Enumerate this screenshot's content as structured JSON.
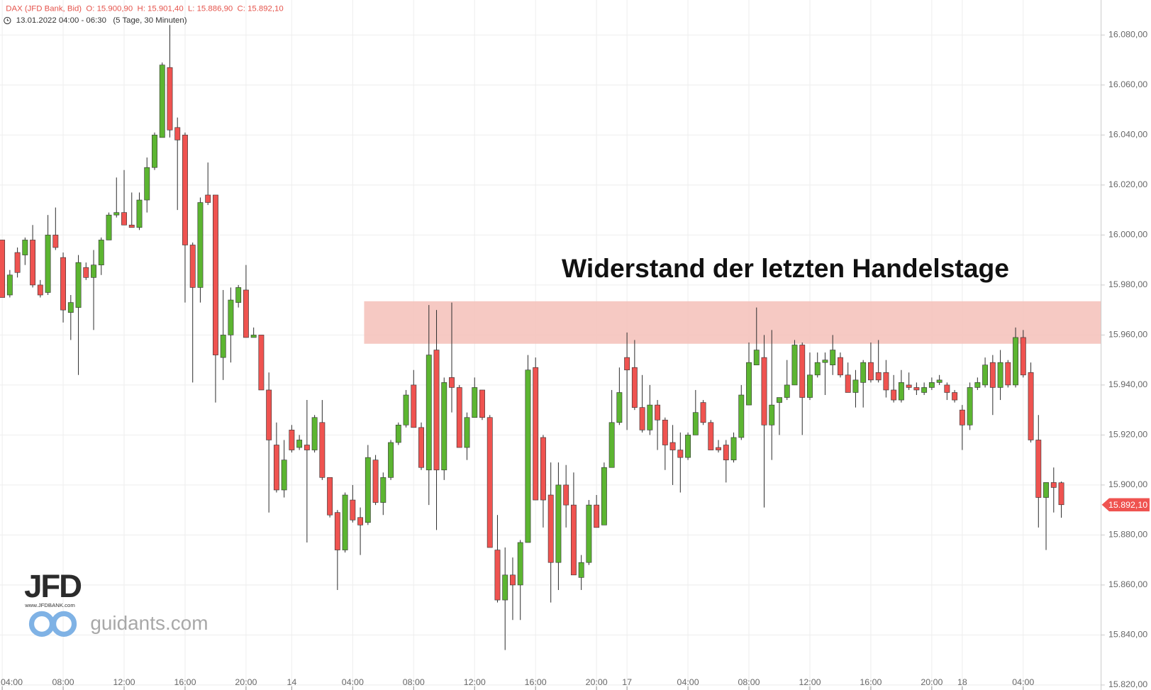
{
  "chart_data": {
    "type": "candlestick",
    "header": "DAX (JFD Bank, Bid)  O: 15.900,90  H: 15.901,40  L: 15.886,90  C: 15.892,10",
    "subheader": "13.01.2022 04:00 - 06:30   (5 Tage, 30 Minuten)",
    "categories": [
      "04:00",
      null,
      null,
      null,
      null,
      null,
      null,
      null,
      "08:00",
      null,
      null,
      null,
      null,
      null,
      null,
      null,
      "12:00",
      null,
      null,
      null,
      null,
      null,
      null,
      null,
      "16:00",
      null,
      null,
      null,
      null,
      null,
      null,
      null,
      "20:00",
      null,
      null,
      null,
      null,
      null,
      "14",
      null,
      null,
      null,
      null,
      null,
      null,
      null,
      "04:00",
      null,
      null,
      null,
      null,
      null,
      null,
      null,
      "08:00",
      null,
      null,
      null,
      null,
      null,
      null,
      null,
      "12:00",
      null,
      null,
      null,
      null,
      null,
      null,
      null,
      "16:00",
      null,
      null,
      null,
      null,
      null,
      null,
      null,
      "20:00",
      null,
      null,
      null,
      "17",
      null,
      null,
      null,
      null,
      null,
      null,
      null,
      "04:00",
      null,
      null,
      null,
      null,
      null,
      null,
      null,
      "08:00",
      null,
      null,
      null,
      null,
      null,
      null,
      null,
      "12:00",
      null,
      null,
      null,
      null,
      null,
      null,
      null,
      "16:00",
      null,
      null,
      null,
      null,
      null,
      null,
      null,
      "20:00",
      null,
      null,
      null,
      "18",
      null,
      null,
      null,
      null,
      null,
      null,
      null,
      "04:00",
      null,
      null,
      null,
      null,
      null
    ],
    "open": [
      15998,
      15976,
      15993,
      15992,
      15998,
      15980,
      15977,
      16000,
      15991,
      15969,
      15971,
      15987,
      15983,
      15988,
      15998,
      16008,
      16009,
      16004,
      16003,
      16014,
      16027,
      16039,
      16067,
      16043,
      16040,
      15996,
      15979,
      16016,
      16016,
      15951,
      15960,
      15973,
      15978,
      15959,
      15960,
      15938,
      15916,
      15898,
      15922,
      15915,
      15916,
      15914,
      15925,
      15903,
      15889,
      15874,
      15894,
      15887,
      15885,
      15910,
      15893,
      15903,
      15917,
      15924,
      15940,
      15923,
      15906,
      15954,
      15906,
      15943,
      15939,
      15915,
      15927,
      15938,
      15927,
      15874,
      15854,
      15864,
      15860,
      15877,
      15947,
      15919,
      15896,
      15869,
      15900,
      15892,
      15863,
      15869,
      15892,
      15884,
      15907,
      15925,
      15951,
      15947,
      15931,
      15922,
      15932,
      15926,
      15917,
      15914,
      15911,
      15920,
      15933,
      15925,
      15915,
      15916,
      15910,
      15919,
      15932,
      15948,
      15951,
      15924,
      15933,
      15935,
      15940,
      15956,
      15935,
      15944,
      15949,
      15948,
      15951,
      15944,
      15937,
      15941,
      15949,
      15945,
      15945,
      15938,
      15934,
      15940,
      15939,
      15937,
      15939,
      15941,
      15940,
      15937,
      15930,
      15924,
      15939,
      15940,
      15949,
      15939,
      15949,
      15940,
      15959,
      15945,
      15918,
      15895,
      15901,
      15900.9
    ],
    "high": [
      15998,
      15986,
      15995,
      15999,
      16004,
      15982,
      16008,
      16011,
      15993,
      15976,
      15992,
      15989,
      15994,
      15999,
      16009,
      16023,
      16026,
      16017,
      16017,
      16031,
      16041,
      16069,
      16084,
      16047,
      16041,
      15997,
      16015,
      16029,
      16016,
      15978,
      15979,
      15980,
      15988,
      15963,
      15960,
      15945,
      15925,
      15918,
      15924,
      15920,
      15934,
      15928,
      15934,
      15903,
      15890,
      15897,
      15900,
      15891,
      15916,
      15912,
      15905,
      15918,
      15925,
      15938,
      15946,
      15925,
      15972,
      15970,
      15943,
      15973,
      15940,
      15929,
      15943,
      15938,
      15928,
      15888,
      15875,
      15871,
      15878,
      15952,
      15951,
      15920,
      15909,
      15909,
      15908,
      15905,
      15872,
      15894,
      15896,
      15909,
      15938,
      15947,
      15961,
      15958,
      15944,
      15940,
      15934,
      15927,
      15924,
      15921,
      15921,
      15938,
      15934,
      15926,
      15918,
      15918,
      15921,
      15940,
      15957,
      15971,
      15960,
      15962,
      15935,
      15950,
      15958,
      15957,
      15953,
      15953,
      15953,
      15960,
      15953,
      15949,
      15946,
      15950,
      15957,
      15958,
      15950,
      15944,
      15946,
      15945,
      15941,
      15941,
      15943,
      15944,
      15941,
      15938,
      15932,
      15941,
      15943,
      15951,
      15952,
      15954,
      15950,
      15963,
      15962,
      15949,
      15928,
      15901,
      15907,
      15901.4
    ],
    "low": [
      15975,
      15975,
      15983,
      15988,
      15979,
      15975,
      15976,
      15994,
      15965,
      15958,
      15944,
      15982,
      15962,
      15984,
      15998,
      16007,
      16004,
      16003,
      16002,
      16009,
      16026,
      16039,
      16039,
      16010,
      15973,
      15941,
      15973,
      16012,
      15933,
      15942,
      15949,
      15971,
      15959,
      15959,
      15938,
      15889,
      15897,
      15895,
      15913,
      15914,
      15877,
      15913,
      15902,
      15887,
      15858,
      15873,
      15885,
      15872,
      15884,
      15892,
      15888,
      15902,
      15916,
      15923,
      15923,
      15906,
      15892,
      15882,
      15902,
      15929,
      15915,
      15910,
      15927,
      15926,
      15875,
      15853,
      15834,
      15846,
      15846,
      15877,
      15894,
      15883,
      15853,
      15858,
      15883,
      15864,
      15858,
      15868,
      15883,
      15884,
      15907,
      15924,
      15922,
      15930,
      15921,
      15920,
      15914,
      15906,
      15900,
      15897,
      15910,
      15920,
      15924,
      15914,
      15913,
      15901,
      15909,
      15918,
      15932,
      15948,
      15891,
      15910,
      15920,
      15934,
      15940,
      15920,
      15934,
      15943,
      15936,
      15944,
      15943,
      15937,
      15931,
      15931,
      15941,
      15941,
      15935,
      15933,
      15933,
      15938,
      15936,
      15936,
      15938,
      15940,
      15934,
      15933,
      15914,
      15922,
      15938,
      15939,
      15928,
      15934,
      15939,
      15939,
      15943,
      15917,
      15883,
      15874,
      15889,
      15886.9
    ],
    "close": [
      15975,
      15984,
      15985,
      15998,
      15980,
      15976,
      16000,
      15995,
      15970,
      15973,
      15989,
      15983,
      15988,
      15998,
      16008,
      16009,
      16004,
      16003,
      16014,
      16027,
      16040,
      16068,
      16042,
      16038,
      15996,
      15979,
      16013,
      16013,
      15952,
      15960,
      15974,
      15979,
      15959,
      15960,
      15938,
      15918,
      15898,
      15910,
      15914,
      15918,
      15914,
      15927,
      15903,
      15888,
      15874,
      15896,
      15886,
      15884,
      15911,
      15893,
      15903,
      15917,
      15924,
      15936,
      15923,
      15907,
      15952,
      15906,
      15941,
      15939,
      15915,
      15927,
      15939,
      15927,
      15875,
      15854,
      15864,
      15860,
      15877,
      15946,
      15894,
      15894,
      15869,
      15900,
      15892,
      15864,
      15869,
      15892,
      15883,
      15907,
      15925,
      15937,
      15946,
      15931,
      15922,
      15932,
      15926,
      15916,
      15914,
      15911,
      15920,
      15929,
      15925,
      15914,
      15914,
      15910,
      15919,
      15936,
      15949,
      15954,
      15924,
      15932,
      15935,
      15940,
      15956,
      15935,
      15944,
      15949,
      15950,
      15954,
      15944,
      15937,
      15942,
      15949,
      15942,
      15942,
      15938,
      15934,
      15941,
      15939,
      15938,
      15939,
      15941,
      15942,
      15937,
      15934,
      15924,
      15939,
      15941,
      15948,
      15939,
      15949,
      15940,
      15959,
      15944,
      15918,
      15895,
      15901,
      15899,
      15892.1
    ],
    "up_color": "#5cb531",
    "down_color": "#ef5350",
    "ylim": [
      15818,
      16094
    ],
    "yticks": [
      {
        "value": 15820,
        "label": "15.820,00"
      },
      {
        "value": 15840,
        "label": "15.840,00"
      },
      {
        "value": 15860,
        "label": "15.860,00"
      },
      {
        "value": 15880,
        "label": "15.880,00"
      },
      {
        "value": 15900,
        "label": "15.900,00"
      },
      {
        "value": 15920,
        "label": "15.920,00"
      },
      {
        "value": 15940,
        "label": "15.940,00"
      },
      {
        "value": 15960,
        "label": "15.960,00"
      },
      {
        "value": 15980,
        "label": "15.980,00"
      },
      {
        "value": 16000,
        "label": "16.000,00"
      },
      {
        "value": 16020,
        "label": "16.020,00"
      },
      {
        "value": 16040,
        "label": "16.040,00"
      },
      {
        "value": 16060,
        "label": "16.060,00"
      },
      {
        "value": 16080,
        "label": "16.080,00"
      }
    ],
    "grid": true,
    "last_price": {
      "value": 15892.1,
      "label": "15.892,10"
    },
    "zone": {
      "label": "Widerstand der letzten Handelstage",
      "range": [
        15956.5,
        15973.5
      ],
      "start": 48,
      "color": "#f5c0b8"
    },
    "branding": {
      "logo": "JFD",
      "site": "www.JFDBANK.com",
      "platform": "guidants.com"
    }
  }
}
